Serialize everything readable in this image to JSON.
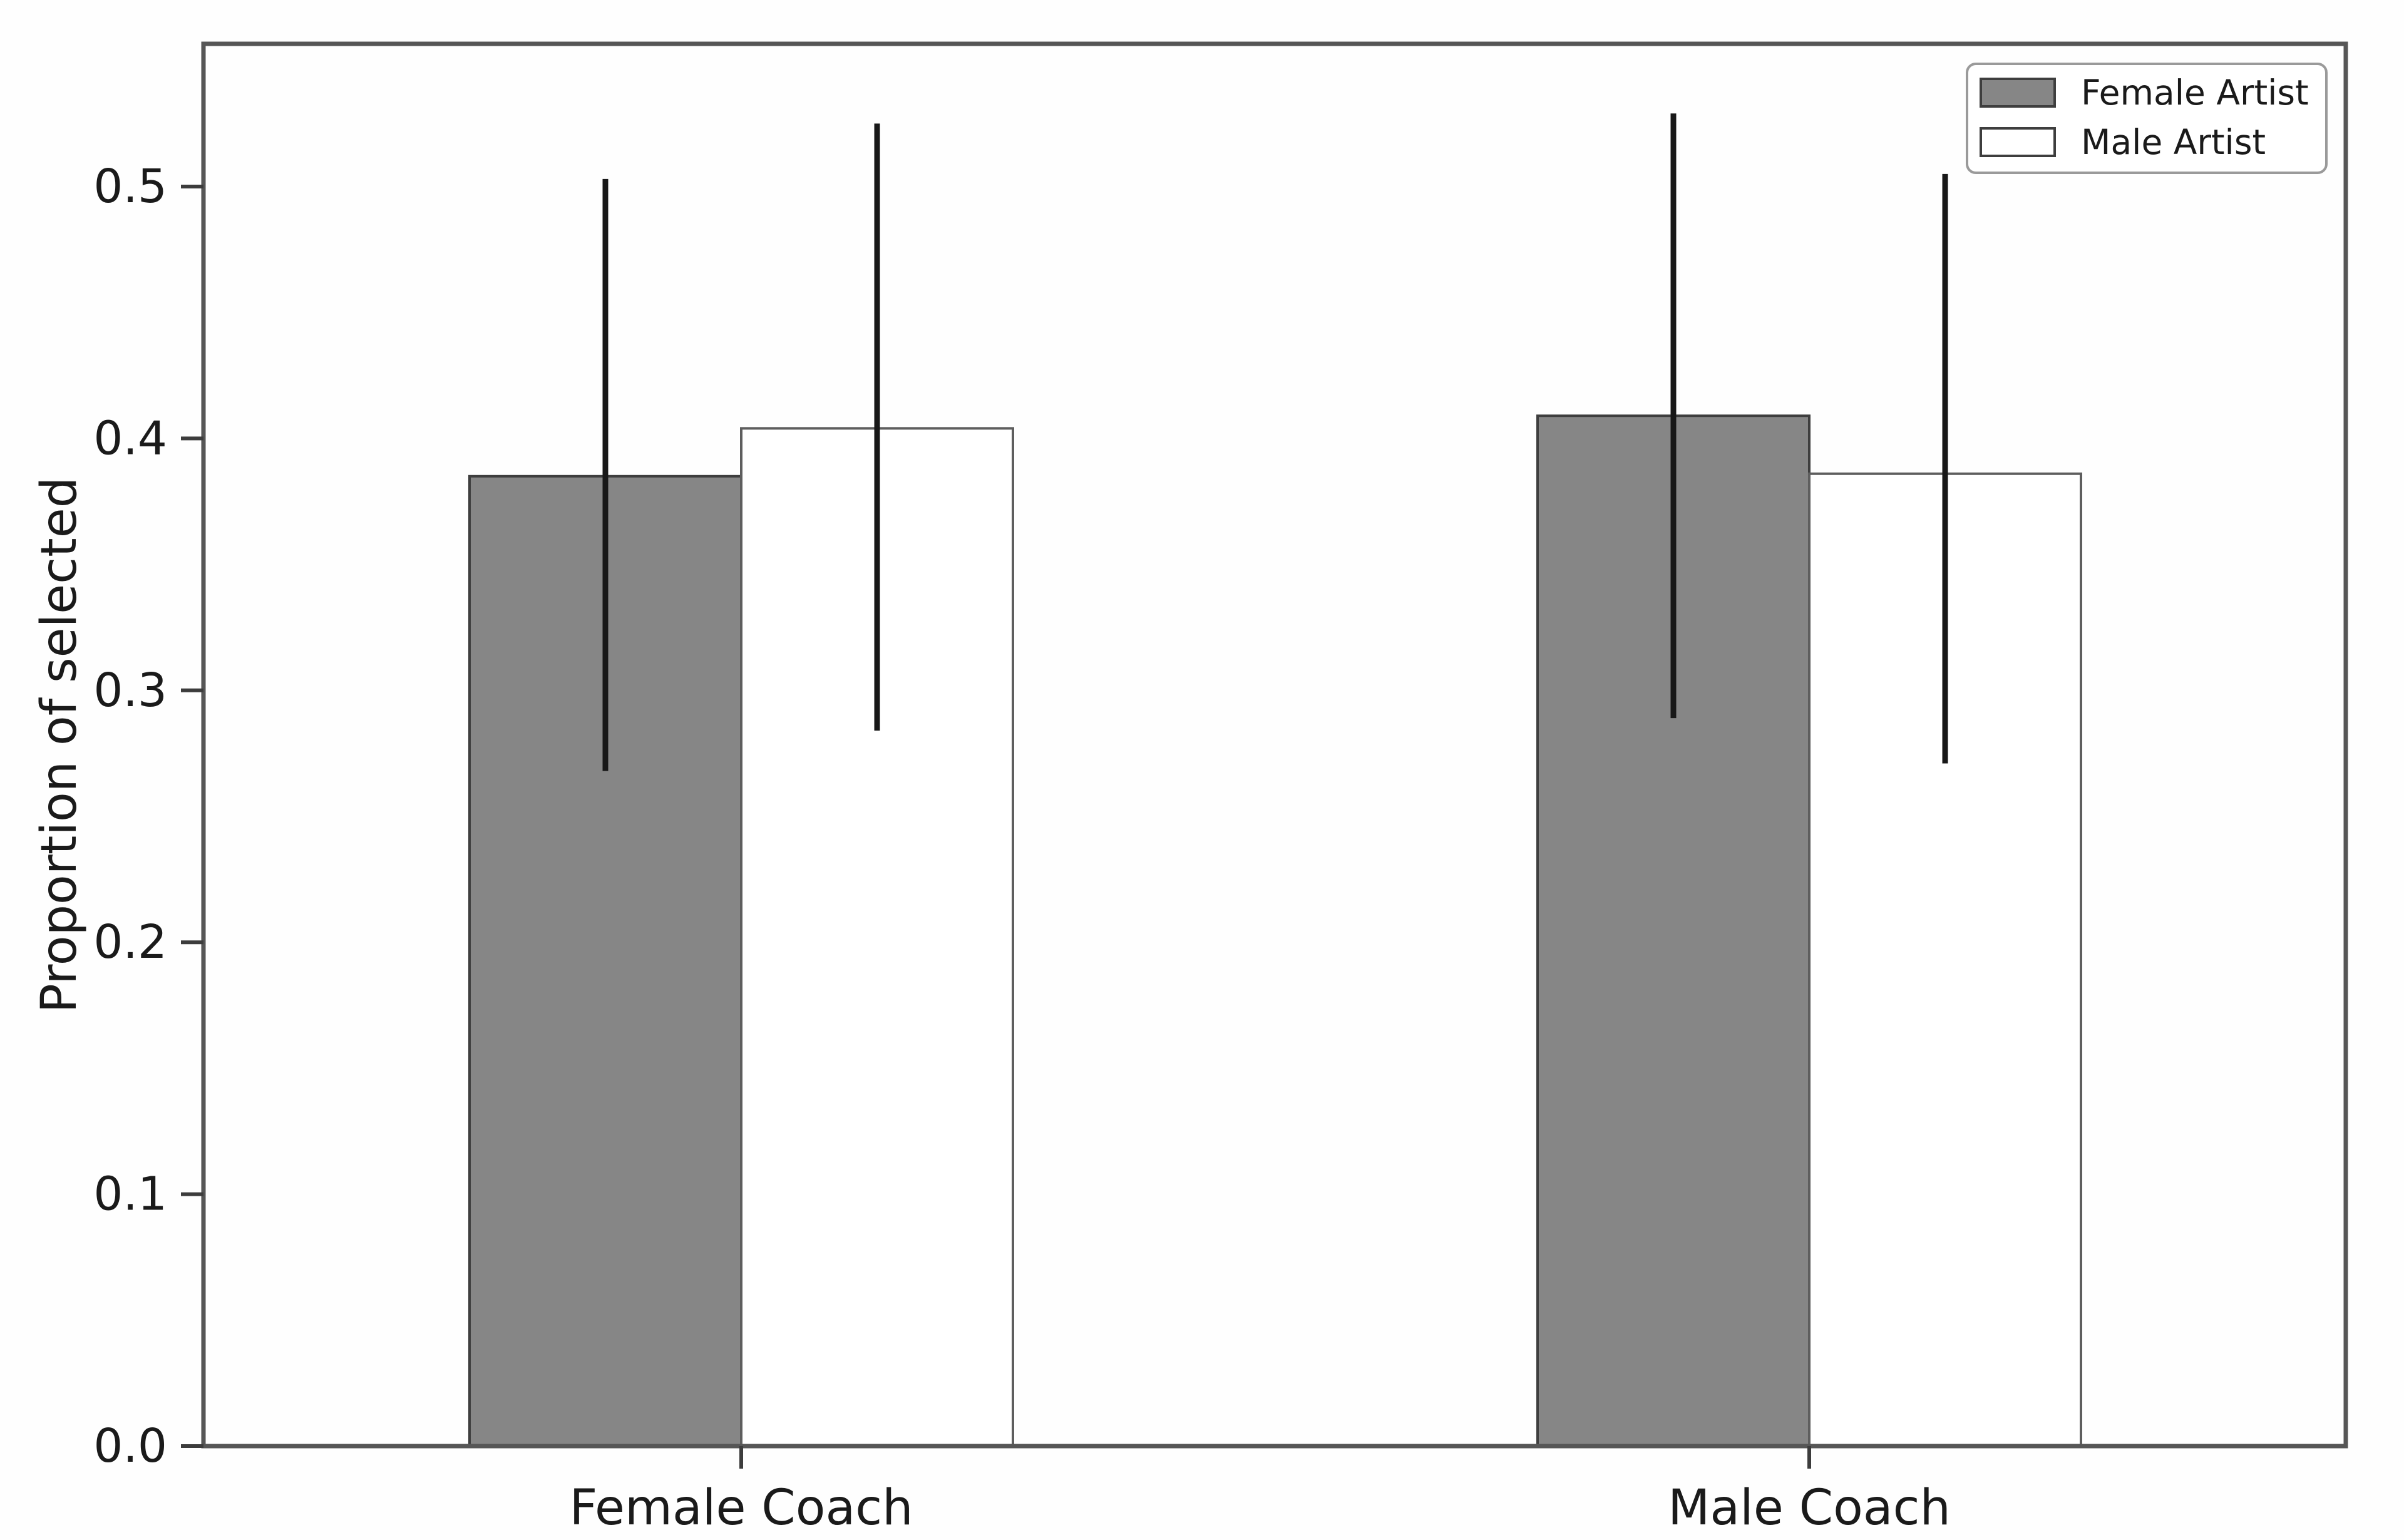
{
  "figure": {
    "background": "#fefefe",
    "spine_color": "#565656",
    "tick_color": "#3c3c3c",
    "text_color": "#1a1a1a",
    "error_bar_color": "#181818"
  },
  "legend": {
    "position": "upper right",
    "border_color": "#9a9a9a",
    "entries": [
      {
        "label": "Female Artist",
        "swatch_fill": "#868686",
        "swatch_edge": "#3e3e3e"
      },
      {
        "label": "Male Artist",
        "swatch_fill": "#ffffff",
        "swatch_edge": "#3e3e3e"
      }
    ]
  },
  "chart_data": {
    "type": "bar",
    "title": "",
    "xlabel": "",
    "ylabel": "Proportion of selected",
    "categories": [
      "Female Coach",
      "Male Coach"
    ],
    "series": [
      {
        "name": "Female Artist",
        "values": [
          0.385,
          0.409
        ],
        "error_low": [
          0.268,
          0.289
        ],
        "error_high": [
          0.503,
          0.529
        ],
        "fill": "#868686",
        "edge": "#3e3e3e"
      },
      {
        "name": "Male Artist",
        "values": [
          0.404,
          0.386
        ],
        "error_low": [
          0.284,
          0.271
        ],
        "error_high": [
          0.525,
          0.505
        ],
        "fill": "#ffffff",
        "edge": "#5e5e5e"
      }
    ],
    "yticks": [
      0.0,
      0.1,
      0.2,
      0.3,
      0.4,
      0.5
    ],
    "ytick_labels": [
      "0.0",
      "0.1",
      "0.2",
      "0.3",
      "0.4",
      "0.5"
    ],
    "ylim": [
      0,
      0.557
    ],
    "grid": false,
    "legend_position": "upper right",
    "error_bars": true,
    "error_bar_caps": false
  }
}
